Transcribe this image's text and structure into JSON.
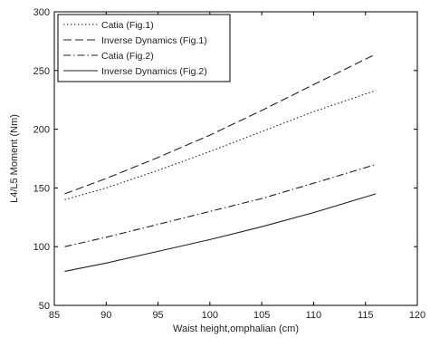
{
  "chart_data": {
    "type": "line",
    "xlabel": "Waist height,omphalian (cm)",
    "ylabel": "L4/L5 Moment (Nm)",
    "xlim": [
      85,
      120
    ],
    "ylim": [
      50,
      300
    ],
    "xticks": [
      85,
      90,
      95,
      100,
      105,
      110,
      115,
      120
    ],
    "yticks": [
      50,
      100,
      150,
      200,
      250,
      300
    ],
    "grid": false,
    "legend_position": "top-left",
    "series": [
      {
        "name": "Catia (Fig.1)",
        "style": "dotted",
        "x": [
          86,
          90,
          95,
          100,
          105,
          110,
          116
        ],
        "y": [
          140,
          150,
          165,
          181,
          198,
          215,
          233
        ]
      },
      {
        "name": "Inverse Dynamics (Fig.1)",
        "style": "dashed",
        "x": [
          86,
          90,
          95,
          100,
          105,
          110,
          116
        ],
        "y": [
          145,
          158,
          176,
          195,
          216,
          238,
          264
        ]
      },
      {
        "name": "Catia (Fig.2)",
        "style": "dashdot",
        "x": [
          86,
          90,
          95,
          100,
          105,
          110,
          116
        ],
        "y": [
          100,
          108,
          119,
          130,
          141,
          154,
          170
        ]
      },
      {
        "name": "Inverse Dynamics (Fig.2)",
        "style": "solid",
        "x": [
          86,
          90,
          95,
          100,
          105,
          110,
          116
        ],
        "y": [
          79,
          86,
          96,
          106,
          117,
          129,
          145
        ]
      }
    ]
  }
}
